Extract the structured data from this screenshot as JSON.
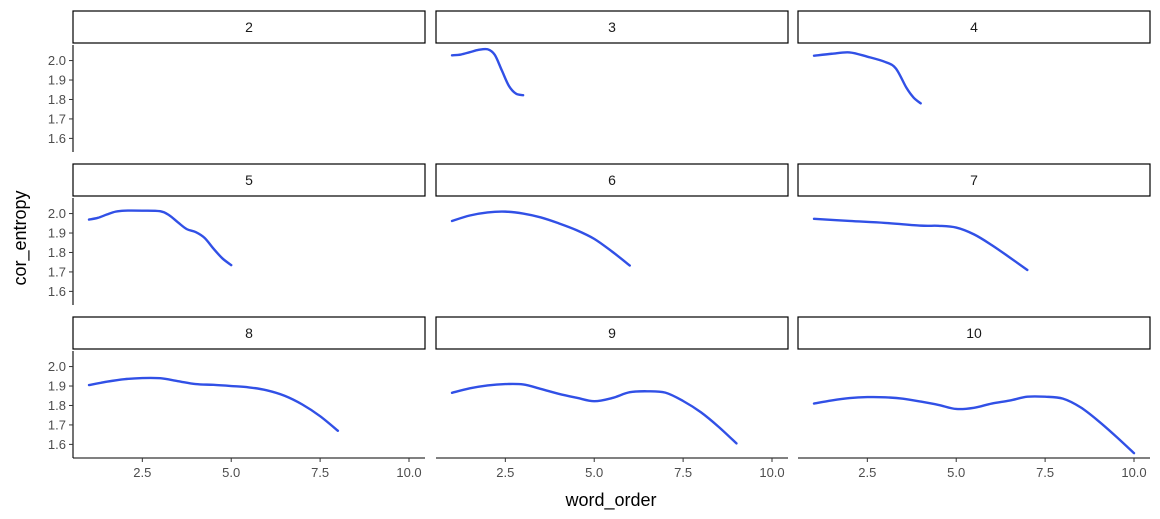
{
  "chart_data": {
    "type": "line",
    "xlabel": "word_order",
    "ylabel": "cor_entropy",
    "xlim": [
      0.55,
      10.45
    ],
    "ylim": [
      1.53,
      2.08
    ],
    "x_ticks": [
      2.5,
      5.0,
      7.5,
      10.0
    ],
    "x_tick_labels": [
      "2.5",
      "5.0",
      "7.5",
      "10.0"
    ],
    "y_ticks": [
      1.6,
      1.7,
      1.8,
      1.9,
      2.0
    ],
    "y_tick_labels": [
      "1.6",
      "1.7",
      "1.8",
      "1.9",
      "2.0"
    ],
    "grid": false,
    "colors": {
      "line": "#3150E6"
    },
    "panels": [
      {
        "label": "2",
        "x": [],
        "y": []
      },
      {
        "label": "3",
        "x": [
          1.0,
          1.25,
          1.5,
          1.75,
          2.0,
          2.2,
          2.4,
          2.6,
          2.8,
          3.0
        ],
        "y": [
          2.027,
          2.031,
          2.043,
          2.055,
          2.058,
          2.03,
          1.95,
          1.87,
          1.83,
          1.822
        ]
      },
      {
        "label": "4",
        "x": [
          1.0,
          1.5,
          2.0,
          2.5,
          3.0,
          3.3,
          3.6,
          3.8,
          4.0
        ],
        "y": [
          2.025,
          2.035,
          2.042,
          2.02,
          1.993,
          1.96,
          1.86,
          1.81,
          1.78
        ]
      },
      {
        "label": "5",
        "x": [
          1.0,
          1.25,
          1.5,
          1.75,
          2.0,
          2.5,
          3.0,
          3.25,
          3.5,
          3.75,
          4.0,
          4.25,
          4.5,
          4.75,
          5.0
        ],
        "y": [
          1.969,
          1.978,
          1.995,
          2.01,
          2.015,
          2.015,
          2.012,
          1.992,
          1.955,
          1.92,
          1.905,
          1.875,
          1.82,
          1.77,
          1.735
        ]
      },
      {
        "label": "6",
        "x": [
          1.0,
          1.5,
          2.0,
          2.5,
          3.0,
          3.5,
          4.0,
          4.5,
          5.0,
          5.5,
          6.0
        ],
        "y": [
          1.962,
          1.99,
          2.006,
          2.01,
          2.0,
          1.98,
          1.95,
          1.915,
          1.87,
          1.805,
          1.733
        ]
      },
      {
        "label": "7",
        "x": [
          1.0,
          2.0,
          3.0,
          4.0,
          4.5,
          5.0,
          5.5,
          6.0,
          6.5,
          7.0
        ],
        "y": [
          1.973,
          1.962,
          1.952,
          1.938,
          1.937,
          1.928,
          1.893,
          1.838,
          1.775,
          1.71
        ]
      },
      {
        "label": "8",
        "x": [
          1.0,
          1.5,
          2.0,
          2.5,
          3.0,
          3.5,
          4.0,
          4.5,
          5.0,
          5.5,
          6.0,
          6.5,
          7.0,
          7.5,
          8.0
        ],
        "y": [
          1.905,
          1.922,
          1.935,
          1.941,
          1.94,
          1.925,
          1.91,
          1.906,
          1.9,
          1.893,
          1.878,
          1.85,
          1.805,
          1.745,
          1.67
        ]
      },
      {
        "label": "9",
        "x": [
          1.0,
          1.5,
          2.0,
          2.5,
          3.0,
          3.5,
          4.0,
          4.5,
          5.0,
          5.5,
          6.0,
          6.5,
          7.0,
          7.5,
          8.0,
          8.5,
          9.0
        ],
        "y": [
          1.865,
          1.888,
          1.903,
          1.91,
          1.908,
          1.885,
          1.86,
          1.84,
          1.822,
          1.838,
          1.868,
          1.873,
          1.866,
          1.823,
          1.765,
          1.69,
          1.605
        ]
      },
      {
        "label": "10",
        "x": [
          1.0,
          1.5,
          2.0,
          2.5,
          3.0,
          3.5,
          4.0,
          4.5,
          5.0,
          5.5,
          6.0,
          6.5,
          7.0,
          7.5,
          8.0,
          8.5,
          9.0,
          9.5,
          10.0
        ],
        "y": [
          1.81,
          1.826,
          1.838,
          1.843,
          1.842,
          1.835,
          1.82,
          1.803,
          1.782,
          1.788,
          1.81,
          1.825,
          1.845,
          1.845,
          1.835,
          1.79,
          1.72,
          1.64,
          1.555
        ]
      }
    ]
  }
}
